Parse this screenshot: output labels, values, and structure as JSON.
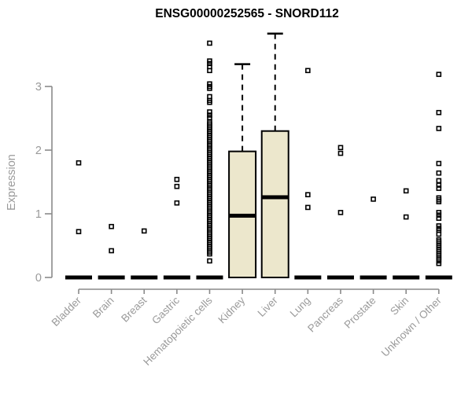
{
  "title": "ENSG00000252565 - SNORD112",
  "y_axis": {
    "label": "Expression",
    "ticks": [
      0,
      1,
      2,
      3
    ]
  },
  "colors": {
    "box_fill": "#ECE7CC",
    "box_border": "#000000",
    "median": "#000000",
    "outlier": "#000000",
    "axis_line": "#8a8a8a",
    "axis_text": "#9a9a9a",
    "title_text": "#000000",
    "background": "#ffffff"
  },
  "chart_data": {
    "type": "boxplot",
    "title": "ENSG00000252565 - SNORD112",
    "ylabel": "Expression",
    "ylim": [
      0,
      3.9
    ],
    "ytick_values": [
      0,
      1,
      2,
      3
    ],
    "grid": false,
    "groups": [
      {
        "label": "Bladder",
        "box": {
          "q1": 0,
          "median": 0,
          "q3": 0,
          "whisker_low": 0,
          "whisker_high": 0
        },
        "outliers": [
          1.8,
          0.72
        ]
      },
      {
        "label": "Brain",
        "box": {
          "q1": 0,
          "median": 0,
          "q3": 0,
          "whisker_low": 0,
          "whisker_high": 0
        },
        "outliers": [
          0.8,
          0.42
        ]
      },
      {
        "label": "Breast",
        "box": {
          "q1": 0,
          "median": 0,
          "q3": 0,
          "whisker_low": 0,
          "whisker_high": 0
        },
        "outliers": [
          0.73
        ]
      },
      {
        "label": "Gastric",
        "box": {
          "q1": 0,
          "median": 0,
          "q3": 0,
          "whisker_low": 0,
          "whisker_high": 0
        },
        "outliers": [
          1.54,
          1.43,
          1.17
        ]
      },
      {
        "label": "Hematopoietic cells",
        "box": {
          "q1": 0,
          "median": 0,
          "q3": 0,
          "whisker_low": 0,
          "whisker_high": 0
        },
        "outliers": [
          3.68,
          3.4,
          3.36,
          3.31,
          3.25,
          3.04,
          3.0,
          2.97,
          2.84,
          2.78,
          2.75,
          2.6,
          2.55,
          2.51,
          0.26
        ],
        "dense_outliers": {
          "from": 2.44,
          "to": 0.35,
          "step": 0.03
        }
      },
      {
        "label": "Kidney",
        "box": {
          "q1": 0,
          "median": 0.97,
          "q3": 1.98,
          "whisker_low": 0,
          "whisker_high": 3.35
        },
        "outliers": []
      },
      {
        "label": "Liver",
        "box": {
          "q1": 0,
          "median": 1.26,
          "q3": 2.3,
          "whisker_low": 0,
          "whisker_high": 3.83
        },
        "outliers": []
      },
      {
        "label": "Lung",
        "box": {
          "q1": 0,
          "median": 0,
          "q3": 0,
          "whisker_low": 0,
          "whisker_high": 0
        },
        "outliers": [
          3.25,
          1.3,
          1.1
        ]
      },
      {
        "label": "Pancreas",
        "box": {
          "q1": 0,
          "median": 0,
          "q3": 0,
          "whisker_low": 0,
          "whisker_high": 0
        },
        "outliers": [
          2.04,
          1.95,
          1.02
        ]
      },
      {
        "label": "Prostate",
        "box": {
          "q1": 0,
          "median": 0,
          "q3": 0,
          "whisker_low": 0,
          "whisker_high": 0
        },
        "outliers": [
          1.23
        ]
      },
      {
        "label": "Skin",
        "box": {
          "q1": 0,
          "median": 0,
          "q3": 0,
          "whisker_low": 0,
          "whisker_high": 0
        },
        "outliers": [
          1.36,
          0.95
        ]
      },
      {
        "label": "Unknown / Other",
        "box": {
          "q1": 0,
          "median": 0,
          "q3": 0,
          "whisker_low": 0,
          "whisker_high": 0
        },
        "outliers": [
          3.19,
          2.59,
          2.34,
          1.79,
          1.64,
          1.52,
          1.45,
          1.4,
          1.25,
          1.22,
          1.19,
          1.02,
          0.98,
          0.93,
          0.81,
          0.77,
          0.74,
          0.68,
          0.22
        ],
        "dense_outliers": {
          "from": 0.59,
          "to": 0.25,
          "step": 0.03
        }
      }
    ]
  }
}
